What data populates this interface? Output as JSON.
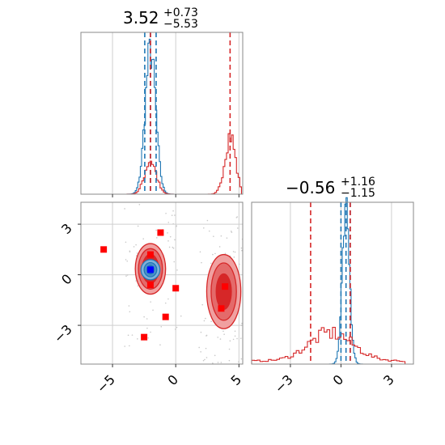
{
  "chart_data": [
    {
      "type": "histogram",
      "panel": "marginal-x",
      "title": {
        "value": "3.52",
        "plus": "+0.73",
        "minus": "−5.53"
      },
      "xlim": [
        -7.5,
        5.3
      ],
      "x_ticks": [
        -5,
        0,
        5
      ],
      "series": [
        {
          "color": "#1f77b4",
          "peak": {
            "x": -2.0,
            "height": 0.92
          },
          "quantile_lines_x": [
            -2.45,
            -2.0,
            -1.55
          ]
        },
        {
          "color": "#d62728",
          "peaks": [
            {
              "x": -2.0,
              "height": 0.22
            },
            {
              "x": 4.3,
              "height": 0.38
            }
          ],
          "quantile_lines_x": [
            -2.0,
            4.3
          ]
        }
      ]
    },
    {
      "type": "contour",
      "panel": "joint",
      "xlim": [
        -7.5,
        5.3
      ],
      "ylim": [
        -5.3,
        4.3
      ],
      "x_ticks": [
        -5,
        0,
        5
      ],
      "x_tick_labels": [
        "−5",
        "0",
        "5"
      ],
      "y_ticks": [
        -3,
        0,
        3
      ],
      "y_tick_labels": [
        "−3",
        "0",
        "3"
      ],
      "grid": true,
      "contour_colors": {
        "blue": "#1f77b4",
        "red": "#d62728"
      },
      "markers": [
        {
          "color": "#0000ff",
          "x": -2.0,
          "y": 0.3
        },
        {
          "color": "#ff0000",
          "x": -5.7,
          "y": 1.5
        },
        {
          "color": "#ff0000",
          "x": -1.2,
          "y": 2.5
        },
        {
          "color": "#ff0000",
          "x": -2.0,
          "y": 1.2
        },
        {
          "color": "#ff0000",
          "x": -2.0,
          "y": -0.6
        },
        {
          "color": "#ff0000",
          "x": 0.0,
          "y": -0.8
        },
        {
          "color": "#ff0000",
          "x": -0.8,
          "y": -2.5
        },
        {
          "color": "#ff0000",
          "x": -2.5,
          "y": -3.7
        },
        {
          "color": "#ff0000",
          "x": 3.9,
          "y": -0.7
        },
        {
          "color": "#ff0000",
          "x": 3.6,
          "y": -2.0
        }
      ]
    },
    {
      "type": "histogram",
      "panel": "marginal-y",
      "title": {
        "value": "−0.56",
        "plus": "+1.16",
        "minus": "−1.15"
      },
      "xlim": [
        -5.3,
        4.3
      ],
      "x_ticks": [
        -3,
        0,
        3
      ],
      "x_tick_labels": [
        "−3",
        "0",
        "3"
      ],
      "series": [
        {
          "color": "#1f77b4",
          "peak": {
            "x": 0.3,
            "height": 0.95
          },
          "quantile_lines_x": [
            0.0,
            0.3,
            0.55
          ]
        },
        {
          "color": "#d62728",
          "peak": {
            "x": -0.6,
            "height": 0.18
          },
          "quantile_lines_x": [
            -1.8,
            0.55
          ]
        }
      ]
    }
  ]
}
